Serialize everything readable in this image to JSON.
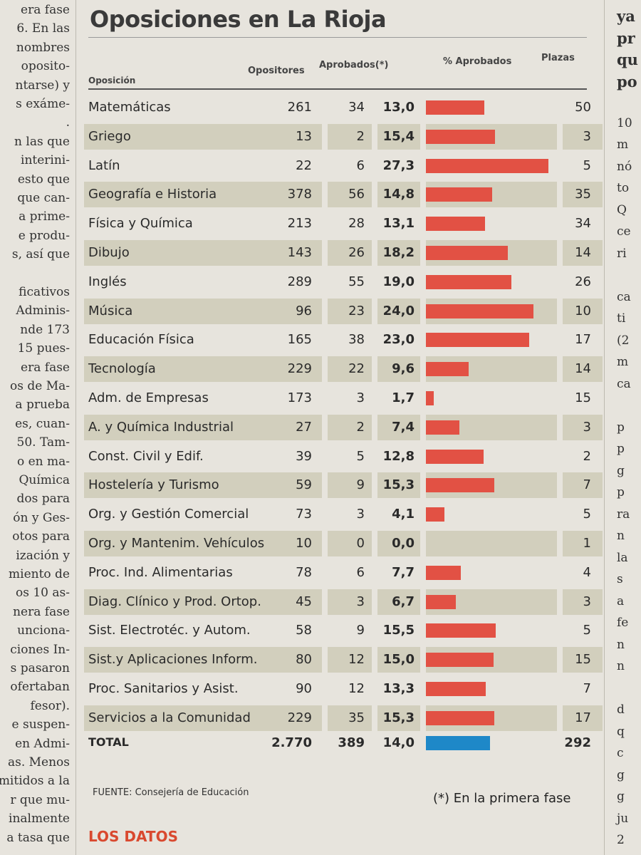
{
  "left_column_lines": [
    "era fase",
    "6. En las",
    "nombres",
    "oposito-",
    "ntarse) y",
    "s exáme-",
    ".",
    "n las que",
    "interini-",
    "esto que",
    "que can-",
    "a prime-",
    "e produ-",
    "s, así que",
    "",
    "ficativos",
    "Adminis-",
    "nde 173",
    "15 pues-",
    "era fase",
    "os de Ma-",
    "a prueba",
    "es, cuan-",
    "50. Tam-",
    "o en ma-",
    "Química",
    "dos para",
    "ón y Ges-",
    "otos para",
    "ización y",
    "miento de",
    "os 10 as-",
    "nera fase",
    "unciona-",
    "ciones In-",
    "s pasaron",
    "ofertaban",
    "fesor).",
    "e suspen-",
    "en Admi-",
    "as. Menos",
    "mitidos a la",
    "r que mu-",
    "inalmente",
    "a tasa que"
  ],
  "right_column_lines": [
    "ya",
    "pr",
    "qu",
    "po",
    "",
    "10",
    "m",
    "nó",
    "to",
    "Q",
    "ce",
    "ri",
    "",
    "ca",
    "ti",
    "(2",
    "m",
    "ca",
    "",
    "p",
    "p",
    "g",
    "p",
    "ra",
    "n",
    "la",
    "s",
    "a",
    "fe",
    "n",
    "n",
    "",
    "d",
    "q",
    "c",
    "g",
    "g",
    "ju",
    "2"
  ],
  "title": "Oposiciones en La Rioja",
  "headers": {
    "oposicion": "Oposición",
    "opositores": "Opositores",
    "aprobados": "Aprobados(*)",
    "pct_aprobados": "% Aprobados",
    "plazas": "Plazas"
  },
  "chart_data": {
    "type": "table",
    "title": "Oposiciones en La Rioja",
    "columns": [
      "Oposición",
      "Opositores",
      "Aprobados(*)",
      "% Aprobados",
      "Plazas"
    ],
    "rows": [
      {
        "name": "Matemáticas",
        "opositores": "261",
        "aprobados": "34",
        "pct": "13,0",
        "pct_value": 13.0,
        "plazas": "50"
      },
      {
        "name": "Griego",
        "opositores": "13",
        "aprobados": "2",
        "pct": "15,4",
        "pct_value": 15.4,
        "plazas": "3"
      },
      {
        "name": "Latín",
        "opositores": "22",
        "aprobados": "6",
        "pct": "27,3",
        "pct_value": 27.3,
        "plazas": "5"
      },
      {
        "name": "Geografía e Historia",
        "opositores": "378",
        "aprobados": "56",
        "pct": "14,8",
        "pct_value": 14.8,
        "plazas": "35"
      },
      {
        "name": "Física y Química",
        "opositores": "213",
        "aprobados": "28",
        "pct": "13,1",
        "pct_value": 13.1,
        "plazas": "34"
      },
      {
        "name": "Dibujo",
        "opositores": "143",
        "aprobados": "26",
        "pct": "18,2",
        "pct_value": 18.2,
        "plazas": "14"
      },
      {
        "name": "Inglés",
        "opositores": "289",
        "aprobados": "55",
        "pct": "19,0",
        "pct_value": 19.0,
        "plazas": "26"
      },
      {
        "name": "Música",
        "opositores": "96",
        "aprobados": "23",
        "pct": "24,0",
        "pct_value": 24.0,
        "plazas": "10"
      },
      {
        "name": "Educación Física",
        "opositores": "165",
        "aprobados": "38",
        "pct": "23,0",
        "pct_value": 23.0,
        "plazas": "17"
      },
      {
        "name": "Tecnología",
        "opositores": "229",
        "aprobados": "22",
        "pct": "9,6",
        "pct_value": 9.6,
        "plazas": "14"
      },
      {
        "name": "Adm. de Empresas",
        "opositores": "173",
        "aprobados": "3",
        "pct": "1,7",
        "pct_value": 1.7,
        "plazas": "15"
      },
      {
        "name": "A. y Química Industrial",
        "opositores": "27",
        "aprobados": "2",
        "pct": "7,4",
        "pct_value": 7.4,
        "plazas": "3"
      },
      {
        "name": "Const. Civil y Edif.",
        "opositores": "39",
        "aprobados": "5",
        "pct": "12,8",
        "pct_value": 12.8,
        "plazas": "2"
      },
      {
        "name": "Hostelería y Turismo",
        "opositores": "59",
        "aprobados": "9",
        "pct": "15,3",
        "pct_value": 15.3,
        "plazas": "7"
      },
      {
        "name": "Org. y Gestión Comercial",
        "opositores": "73",
        "aprobados": "3",
        "pct": "4,1",
        "pct_value": 4.1,
        "plazas": "5"
      },
      {
        "name": "Org. y Mantenim. Vehículos",
        "opositores": "10",
        "aprobados": "0",
        "pct": "0,0",
        "pct_value": 0.0,
        "plazas": "1"
      },
      {
        "name": "Proc. Ind. Alimentarias",
        "opositores": "78",
        "aprobados": "6",
        "pct": "7,7",
        "pct_value": 7.7,
        "plazas": "4"
      },
      {
        "name": "Diag. Clínico y Prod. Ortop.",
        "opositores": "45",
        "aprobados": "3",
        "pct": "6,7",
        "pct_value": 6.7,
        "plazas": "3"
      },
      {
        "name": "Sist. Electrotéc. y Autom.",
        "opositores": "58",
        "aprobados": "9",
        "pct": "15,5",
        "pct_value": 15.5,
        "plazas": "5"
      },
      {
        "name": "Sist.y Aplicaciones Inform.",
        "opositores": "80",
        "aprobados": "12",
        "pct": "15,0",
        "pct_value": 15.0,
        "plazas": "15"
      },
      {
        "name": "Proc. Sanitarios y Asist.",
        "opositores": "90",
        "aprobados": "12",
        "pct": "13,3",
        "pct_value": 13.3,
        "plazas": "7"
      },
      {
        "name": "Servicios a la Comunidad",
        "opositores": "229",
        "aprobados": "35",
        "pct": "15,3",
        "pct_value": 15.3,
        "plazas": "17"
      }
    ],
    "total": {
      "name": "TOTAL",
      "opositores": "2.770",
      "aprobados": "389",
      "pct": "14,0",
      "pct_value": 14.0,
      "plazas": "292"
    },
    "bar_colors": {
      "row": "#e25144",
      "total": "#1e88c8"
    }
  },
  "source_label": "FUENTE:",
  "source_text": "Consejería de Educación",
  "note": "(*) En la primera fase",
  "section_label": "LOS DATOS"
}
